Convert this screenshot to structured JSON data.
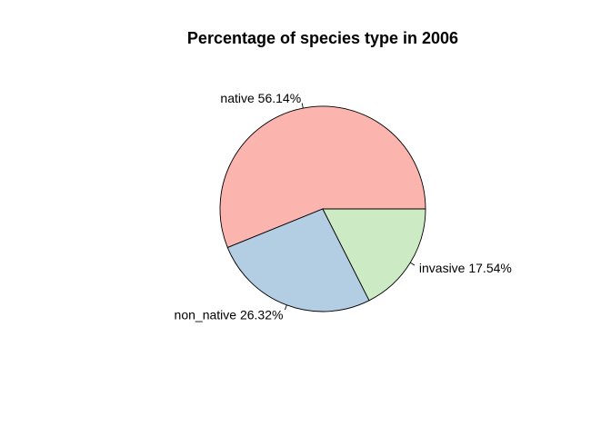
{
  "chart_data": {
    "type": "pie",
    "title": "Percentage of species type in 2006",
    "slices": [
      {
        "label": "native 56.14%",
        "value": 56.14,
        "color": "#FBB4AE"
      },
      {
        "label": "non_native 26.32%",
        "value": 26.32,
        "color": "#B3CDE3"
      },
      {
        "label": "invasive 17.54%",
        "value": 17.54,
        "color": "#CCEBC5"
      }
    ],
    "start_angle_deg": 0,
    "direction": "counterclockwise"
  }
}
